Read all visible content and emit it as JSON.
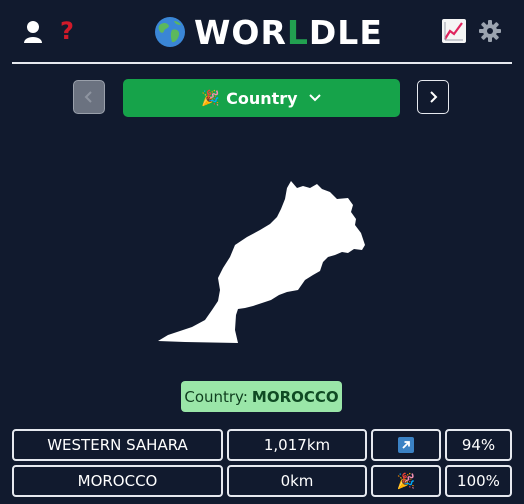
{
  "header": {
    "title_left": "WOR",
    "title_mid": "L",
    "title_right": "DLE",
    "help_symbol": "?",
    "icons": [
      "user-icon",
      "help-icon",
      "globe-icon",
      "stats-icon",
      "gear-icon"
    ]
  },
  "mode": {
    "emoji": "🎉",
    "label": "Country"
  },
  "answer": {
    "prefix": "Country:",
    "value": "MOROCCO"
  },
  "guesses": [
    {
      "country": "WESTERN SAHARA",
      "distance": "1,017km",
      "direction": "↗",
      "percent": "94%"
    },
    {
      "country": "MOROCCO",
      "distance": "0km",
      "direction": "🎉",
      "percent": "100%"
    }
  ],
  "colors": {
    "background": "#111a2e",
    "accent_green": "#16a34a",
    "answer_bg": "#9ae6a8",
    "help_red": "#d11a2a",
    "arrow_blue": "#3b82c4"
  }
}
